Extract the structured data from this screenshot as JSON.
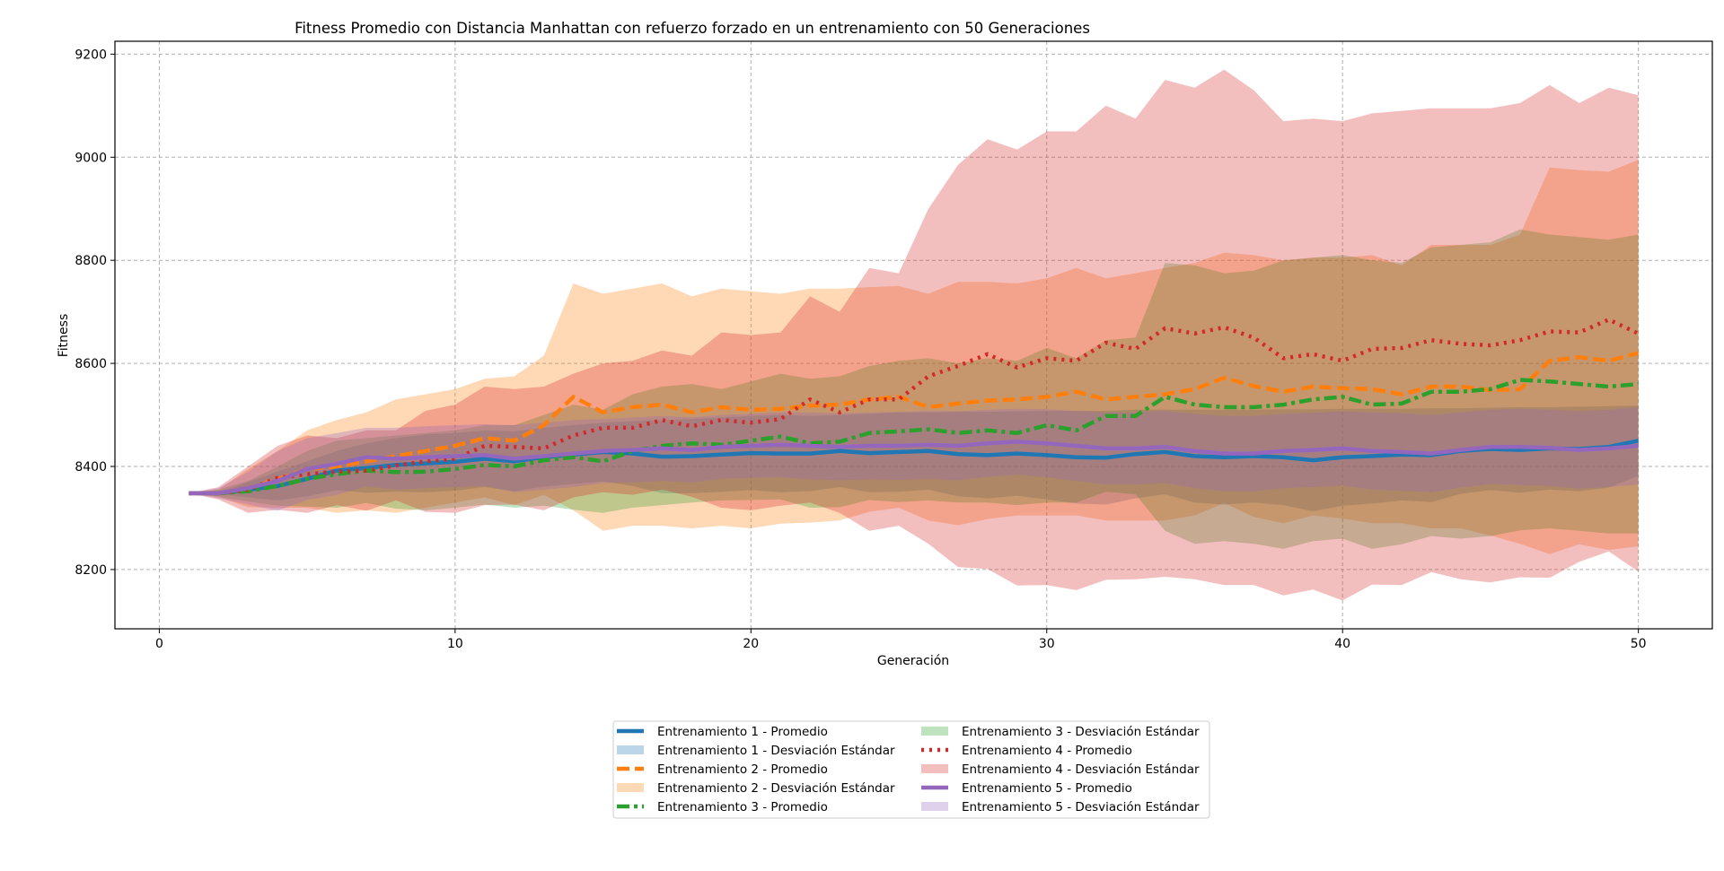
{
  "chart_data": {
    "type": "line",
    "title": "Fitness Promedio con Distancia Manhattan con refuerzo forzado en un entrenamiento con 50 Generaciones",
    "xlabel": "Generación",
    "ylabel": "Fitness",
    "xlim": [
      -1.5,
      52.5
    ],
    "ylim": [
      8085,
      9225
    ],
    "xticks": [
      0,
      10,
      20,
      30,
      40,
      50
    ],
    "yticks": [
      8200,
      8400,
      8600,
      8800,
      9000,
      9200
    ],
    "grid": true,
    "legend_position": "bottom-center",
    "series": [
      {
        "name": "Entrenamiento 1 - Promedio",
        "std_name": "Entrenamiento 1 - Desviación Estándar",
        "color": "#1f77b4",
        "line_style": "solid",
        "mean": [
          8348,
          8348,
          8355,
          8362,
          8376,
          8392,
          8397,
          8403,
          8406,
          8409,
          8415,
          8410,
          8418,
          8423,
          8428,
          8425,
          8419,
          8420,
          8423,
          8426,
          8425,
          8425,
          8430,
          8426,
          8428,
          8430,
          8424,
          8422,
          8425,
          8422,
          8418,
          8417,
          8424,
          8428,
          8420,
          8418,
          8420,
          8418,
          8412,
          8418,
          8420,
          8423,
          8422,
          8430,
          8434,
          8432,
          8435,
          8434,
          8438,
          8450
        ],
        "upper": [
          8348,
          8350,
          8370,
          8390,
          8410,
          8430,
          8445,
          8455,
          8462,
          8465,
          8470,
          8468,
          8475,
          8480,
          8485,
          8488,
          8490,
          8492,
          8495,
          8498,
          8500,
          8498,
          8500,
          8502,
          8505,
          8505,
          8506,
          8506,
          8507,
          8508,
          8508,
          8508,
          8510,
          8510,
          8510,
          8510,
          8510,
          8511,
          8511,
          8512,
          8512,
          8512,
          8513,
          8513,
          8514,
          8515,
          8515,
          8516,
          8517,
          8518
        ],
        "lower": [
          8348,
          8346,
          8340,
          8334,
          8342,
          8354,
          8349,
          8351,
          8350,
          8353,
          8360,
          8352,
          8361,
          8366,
          8371,
          8362,
          8348,
          8348,
          8351,
          8354,
          8350,
          8352,
          8360,
          8350,
          8351,
          8355,
          8342,
          8338,
          8343,
          8336,
          8328,
          8326,
          8338,
          8346,
          8330,
          8326,
          8330,
          8325,
          8313,
          8324,
          8328,
          8334,
          8331,
          8347,
          8354,
          8349,
          8355,
          8352,
          8359,
          8382
        ]
      },
      {
        "name": "Entrenamiento 2 - Promedio",
        "std_name": "Entrenamiento 2 - Desviación Estándar",
        "color": "#ff7f0e",
        "line_style": "dashed",
        "mean": [
          8348,
          8348,
          8358,
          8375,
          8395,
          8400,
          8410,
          8420,
          8430,
          8440,
          8455,
          8450,
          8480,
          8535,
          8505,
          8515,
          8520,
          8505,
          8515,
          8510,
          8512,
          8518,
          8520,
          8530,
          8535,
          8515,
          8522,
          8528,
          8530,
          8535,
          8545,
          8530,
          8535,
          8540,
          8550,
          8572,
          8556,
          8545,
          8555,
          8552,
          8550,
          8540,
          8555,
          8555,
          8548,
          8550,
          8605,
          8612,
          8605,
          8620
        ],
        "upper": [
          8348,
          8355,
          8395,
          8430,
          8470,
          8490,
          8505,
          8530,
          8540,
          8550,
          8570,
          8575,
          8615,
          8755,
          8735,
          8745,
          8755,
          8730,
          8745,
          8740,
          8735,
          8745,
          8745,
          8748,
          8750,
          8735,
          8758,
          8758,
          8755,
          8765,
          8785,
          8765,
          8775,
          8785,
          8795,
          8815,
          8810,
          8800,
          8805,
          8805,
          8810,
          8790,
          8830,
          8830,
          8830,
          8850,
          8980,
          8975,
          8972,
          8995
        ],
        "lower": [
          8348,
          8341,
          8321,
          8320,
          8320,
          8310,
          8315,
          8310,
          8320,
          8330,
          8340,
          8325,
          8345,
          8315,
          8275,
          8285,
          8285,
          8280,
          8285,
          8280,
          8289,
          8291,
          8295,
          8312,
          8320,
          8295,
          8286,
          8298,
          8305,
          8305,
          8305,
          8295,
          8295,
          8295,
          8305,
          8329,
          8302,
          8290,
          8305,
          8299,
          8290,
          8290,
          8280,
          8280,
          8266,
          8250,
          8230,
          8249,
          8238,
          8245
        ]
      },
      {
        "name": "Entrenamiento 3 - Promedio",
        "std_name": "Entrenamiento 3 - Desviación Estándar",
        "color": "#2ca02c",
        "line_style": "dashdot",
        "mean": [
          8348,
          8348,
          8352,
          8362,
          8376,
          8385,
          8392,
          8389,
          8390,
          8395,
          8403,
          8400,
          8412,
          8418,
          8410,
          8430,
          8440,
          8445,
          8442,
          8450,
          8458,
          8445,
          8448,
          8465,
          8468,
          8472,
          8465,
          8470,
          8465,
          8480,
          8470,
          8498,
          8498,
          8535,
          8520,
          8515,
          8515,
          8520,
          8530,
          8535,
          8520,
          8522,
          8545,
          8545,
          8550,
          8568,
          8565,
          8560,
          8555,
          8560
        ],
        "upper": [
          8348,
          8355,
          8372,
          8400,
          8430,
          8450,
          8455,
          8460,
          8465,
          8470,
          8480,
          8480,
          8500,
          8520,
          8510,
          8540,
          8555,
          8560,
          8550,
          8565,
          8580,
          8570,
          8575,
          8595,
          8605,
          8610,
          8600,
          8610,
          8605,
          8630,
          8610,
          8645,
          8650,
          8795,
          8790,
          8775,
          8780,
          8800,
          8805,
          8810,
          8800,
          8795,
          8825,
          8830,
          8835,
          8860,
          8850,
          8845,
          8840,
          8850
        ],
        "lower": [
          8348,
          8341,
          8332,
          8324,
          8322,
          8320,
          8329,
          8318,
          8315,
          8320,
          8326,
          8320,
          8324,
          8316,
          8310,
          8320,
          8325,
          8330,
          8334,
          8335,
          8336,
          8320,
          8321,
          8335,
          8331,
          8334,
          8330,
          8330,
          8325,
          8330,
          8330,
          8351,
          8346,
          8275,
          8250,
          8255,
          8250,
          8240,
          8255,
          8260,
          8240,
          8249,
          8265,
          8260,
          8265,
          8276,
          8280,
          8275,
          8270,
          8270
        ]
      },
      {
        "name": "Entrenamiento 4 - Promedio",
        "std_name": "Entrenamiento 4 - Desviación Estándar",
        "color": "#d62728",
        "line_style": "dotted",
        "mean": [
          8348,
          8348,
          8355,
          8378,
          8385,
          8390,
          8392,
          8402,
          8410,
          8415,
          8440,
          8438,
          8435,
          8460,
          8475,
          8475,
          8490,
          8478,
          8490,
          8485,
          8492,
          8530,
          8505,
          8530,
          8530,
          8575,
          8595,
          8618,
          8592,
          8610,
          8605,
          8640,
          8628,
          8668,
          8658,
          8670,
          8650,
          8610,
          8618,
          8605,
          8628,
          8630,
          8645,
          8638,
          8635,
          8645,
          8662,
          8660,
          8685,
          8658
        ],
        "upper": [
          8348,
          8360,
          8400,
          8440,
          8460,
          8455,
          8470,
          8470,
          8508,
          8520,
          8555,
          8550,
          8555,
          8580,
          8600,
          8605,
          8625,
          8615,
          8660,
          8655,
          8660,
          8730,
          8700,
          8785,
          8775,
          8900,
          8985,
          9035,
          9015,
          9050,
          9050,
          9100,
          9075,
          9150,
          9135,
          9170,
          9130,
          9070,
          9075,
          9070,
          9085,
          9090,
          9095,
          9095,
          9095,
          9105,
          9140,
          9105,
          9135,
          9120
        ],
        "lower": [
          8348,
          8336,
          8310,
          8316,
          8310,
          8325,
          8314,
          8334,
          8312,
          8310,
          8325,
          8326,
          8315,
          8340,
          8350,
          8345,
          8355,
          8341,
          8320,
          8315,
          8324,
          8330,
          8310,
          8275,
          8285,
          8250,
          8205,
          8201,
          8169,
          8170,
          8160,
          8180,
          8181,
          8186,
          8181,
          8170,
          8170,
          8150,
          8161,
          8140,
          8171,
          8170,
          8195,
          8181,
          8175,
          8185,
          8184,
          8215,
          8235,
          8196
        ]
      },
      {
        "name": "Entrenamiento 5 - Promedio",
        "std_name": "Entrenamiento 5 - Desviación Estándar",
        "color": "#9467bd",
        "line_style": "solid",
        "mean": [
          8348,
          8348,
          8358,
          8372,
          8395,
          8405,
          8418,
          8415,
          8418,
          8420,
          8422,
          8415,
          8420,
          8425,
          8430,
          8432,
          8435,
          8432,
          8438,
          8440,
          8442,
          8440,
          8438,
          8440,
          8440,
          8442,
          8440,
          8445,
          8448,
          8445,
          8440,
          8435,
          8435,
          8438,
          8430,
          8425,
          8425,
          8430,
          8432,
          8435,
          8430,
          8428,
          8425,
          8432,
          8438,
          8438,
          8436,
          8432,
          8435,
          8440
        ],
        "upper": [
          8348,
          8358,
          8390,
          8430,
          8455,
          8465,
          8475,
          8475,
          8478,
          8480,
          8482,
          8480,
          8485,
          8490,
          8492,
          8495,
          8498,
          8495,
          8500,
          8502,
          8505,
          8505,
          8503,
          8505,
          8506,
          8508,
          8507,
          8510,
          8512,
          8511,
          8508,
          8505,
          8505,
          8508,
          8502,
          8498,
          8498,
          8502,
          8504,
          8507,
          8505,
          8503,
          8500,
          8505,
          8510,
          8512,
          8510,
          8507,
          8510,
          8515
        ],
        "lower": [
          8348,
          8338,
          8326,
          8314,
          8335,
          8345,
          8361,
          8355,
          8358,
          8360,
          8362,
          8350,
          8355,
          8360,
          8368,
          8369,
          8372,
          8369,
          8376,
          8378,
          8379,
          8375,
          8373,
          8375,
          8374,
          8376,
          8373,
          8380,
          8384,
          8379,
          8372,
          8365,
          8365,
          8368,
          8358,
          8352,
          8352,
          8358,
          8360,
          8363,
          8355,
          8353,
          8350,
          8359,
          8366,
          8364,
          8362,
          8357,
          8360,
          8365
        ]
      }
    ]
  }
}
